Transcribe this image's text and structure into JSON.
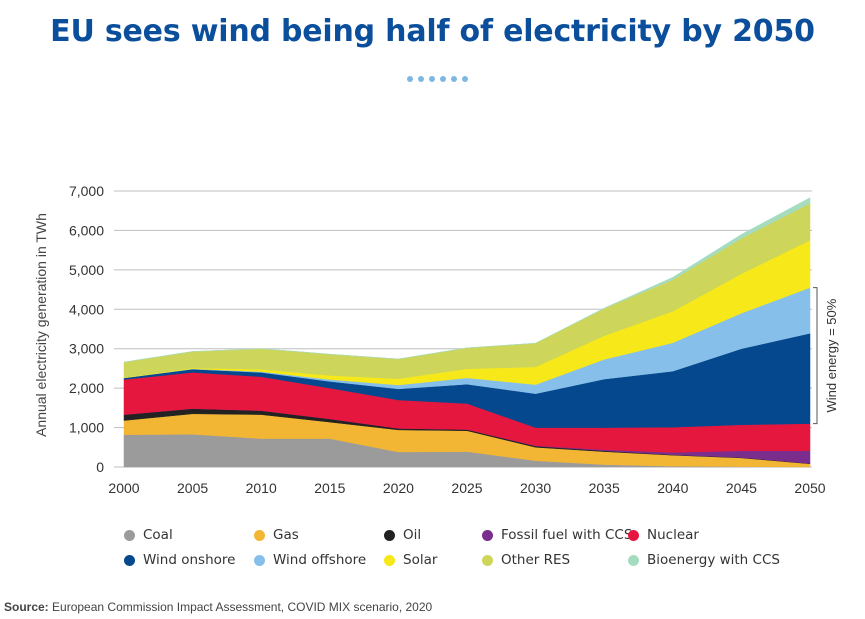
{
  "title": "EU sees wind being half of electricity by 2050",
  "source_label": "Source:",
  "source_text": "European Commission Impact Assessment, COVID MIX scenario, 2020",
  "chart_data": {
    "type": "area",
    "stacked": true,
    "title": "EU sees wind being half of electricity by 2050",
    "ylabel": "Annual electricity generation in TWh",
    "xlabel": "",
    "ylim": [
      0,
      7000
    ],
    "yticks": [
      0,
      1000,
      2000,
      3000,
      4000,
      5000,
      6000,
      7000
    ],
    "ytick_labels": [
      "0",
      "1,000",
      "2,000",
      "3,000",
      "4,000",
      "5,000",
      "6,000",
      "7,000"
    ],
    "xtick_labels": [
      "2000",
      "2005",
      "2010",
      "2015",
      "2020",
      "2025",
      "2030",
      "2035",
      "2040",
      "2045",
      "2050"
    ],
    "x": [
      2000,
      2005,
      2010,
      2015,
      2020,
      2025,
      2030,
      2035,
      2040,
      2045,
      2050
    ],
    "grid": "horizontal",
    "legend_position": "bottom",
    "annotation": "Wind energy = 50%",
    "annotation_range": [
      1100,
      4550
    ],
    "series": [
      {
        "name": "Coal",
        "color": "#9b9b9b",
        "values": [
          820,
          830,
          720,
          720,
          380,
          390,
          160,
          60,
          20,
          10,
          0
        ]
      },
      {
        "name": "Gas",
        "color": "#f2b634",
        "values": [
          360,
          520,
          610,
          420,
          560,
          530,
          340,
          330,
          280,
          220,
          80
        ]
      },
      {
        "name": "Oil",
        "color": "#222222",
        "values": [
          150,
          130,
          100,
          80,
          40,
          30,
          30,
          20,
          10,
          10,
          10
        ]
      },
      {
        "name": "Fossil fuel with CCS",
        "color": "#7b2d8e",
        "values": [
          0,
          0,
          0,
          0,
          0,
          0,
          10,
          30,
          60,
          170,
          320
        ]
      },
      {
        "name": "Nuclear",
        "color": "#e5173f",
        "values": [
          890,
          920,
          860,
          780,
          720,
          660,
          460,
          560,
          640,
          660,
          690
        ]
      },
      {
        "name": "Wind onshore",
        "color": "#06488e",
        "values": [
          40,
          80,
          110,
          170,
          280,
          490,
          860,
          1230,
          1420,
          1930,
          2290
        ]
      },
      {
        "name": "Wind offshore",
        "color": "#86bfe9",
        "values": [
          0,
          10,
          20,
          50,
          100,
          160,
          230,
          500,
          720,
          900,
          1160
        ]
      },
      {
        "name": "Solar",
        "color": "#f7e81a",
        "values": [
          10,
          20,
          60,
          100,
          160,
          230,
          450,
          600,
          800,
          1000,
          1200
        ]
      },
      {
        "name": "Other RES",
        "color": "#cdd65a",
        "values": [
          390,
          420,
          520,
          540,
          500,
          530,
          600,
          690,
          800,
          900,
          940
        ]
      },
      {
        "name": "Bioenergy with CCS",
        "color": "#a5dcc0",
        "values": [
          0,
          0,
          0,
          0,
          0,
          0,
          0,
          10,
          60,
          100,
          140
        ]
      }
    ]
  }
}
